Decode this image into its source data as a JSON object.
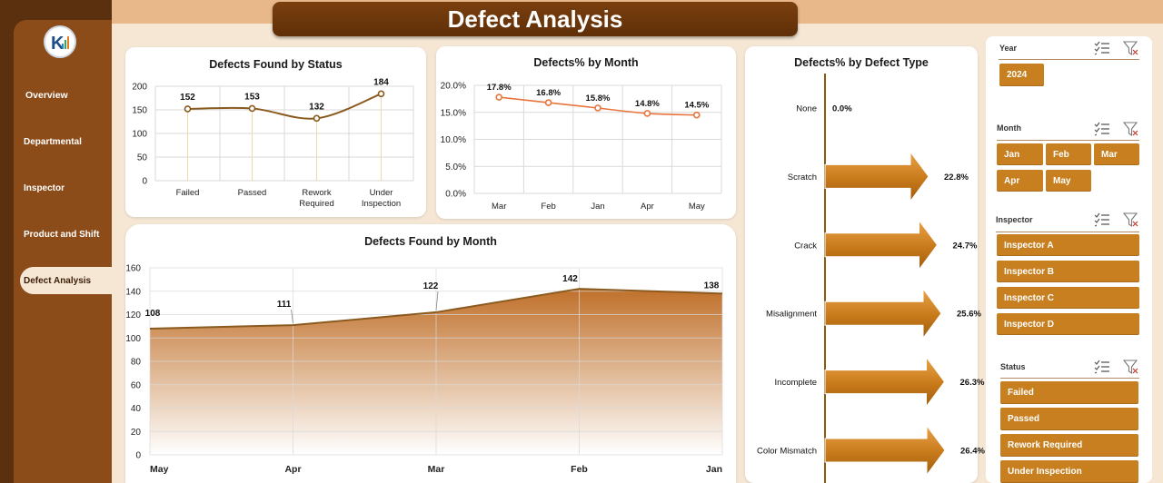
{
  "header": {
    "title": "Defect Analysis"
  },
  "sidebar": {
    "items": [
      {
        "label": "Overview"
      },
      {
        "label": "Departmental"
      },
      {
        "label": "Inspector"
      },
      {
        "label": "Product and Shift"
      },
      {
        "label": "Defect Analysis"
      }
    ],
    "active_index": 4
  },
  "colors": {
    "accent": "#c77f1f",
    "dark": "#5a300f",
    "line": "#8b5a1e",
    "orange_line": "#e8743b"
  },
  "chart_data": [
    {
      "type": "line",
      "title": "Defects Found by Status",
      "categories": [
        "Failed",
        "Passed",
        "Rework Required",
        "Under Inspection"
      ],
      "values": [
        152,
        153,
        132,
        184
      ],
      "ylim": [
        0,
        200
      ],
      "yticks": [
        "0",
        "50",
        "100",
        "150",
        "200"
      ],
      "grid": true
    },
    {
      "type": "line",
      "title": "Defects% by Month",
      "categories": [
        "Mar",
        "Feb",
        "Jan",
        "Apr",
        "May"
      ],
      "values": [
        17.8,
        16.8,
        15.8,
        14.8,
        14.5
      ],
      "data_labels": [
        "17.8%",
        "16.8%",
        "15.8%",
        "14.8%",
        "14.5%"
      ],
      "ylim": [
        0,
        20
      ],
      "yticks": [
        "0.0%",
        "5.0%",
        "10.0%",
        "15.0%",
        "20.0%"
      ],
      "grid": true
    },
    {
      "type": "area",
      "title": "Defects Found by Month",
      "categories": [
        "May",
        "Apr",
        "Mar",
        "Feb",
        "Jan"
      ],
      "values": [
        108,
        111,
        122,
        142,
        138
      ],
      "ylim": [
        0,
        160
      ],
      "yticks": [
        "0",
        "20",
        "40",
        "60",
        "80",
        "100",
        "120",
        "140",
        "160"
      ],
      "grid": true
    },
    {
      "type": "bar",
      "title": "Defects% by Defect Type",
      "categories": [
        "None",
        "Scratch",
        "Crack",
        "Misalignment",
        "Incomplete",
        "Color Mismatch"
      ],
      "values": [
        0.0,
        22.8,
        24.7,
        25.6,
        26.3,
        26.4
      ],
      "data_labels": [
        "0.0%",
        "22.8%",
        "24.7%",
        "25.6%",
        "26.3%",
        "26.4%"
      ]
    }
  ],
  "slicers": [
    {
      "title": "Year",
      "items": [
        "2024"
      ]
    },
    {
      "title": "Month",
      "items": [
        "Jan",
        "Feb",
        "Mar",
        "Apr",
        "May"
      ]
    },
    {
      "title": "Inspector",
      "items": [
        "Inspector A",
        "Inspector B",
        "Inspector C",
        "Inspector D"
      ]
    },
    {
      "title": "Status",
      "items": [
        "Failed",
        "Passed",
        "Rework Required",
        "Under Inspection"
      ]
    }
  ],
  "slicer_icons": [
    "multi-select-icon",
    "clear-filter-icon"
  ]
}
